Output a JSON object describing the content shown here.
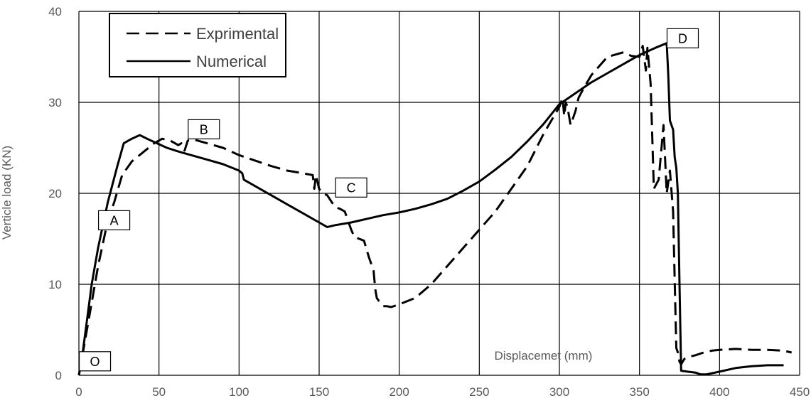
{
  "chart_data": {
    "type": "line",
    "title": "",
    "xlabel": "Displacemet (mm)",
    "ylabel": "Verticle load (KN)",
    "xlim": [
      0,
      450
    ],
    "ylim": [
      0,
      40
    ],
    "xticks": [
      0,
      50,
      100,
      150,
      200,
      250,
      300,
      350,
      400,
      450
    ],
    "yticks": [
      0,
      10,
      20,
      30,
      40
    ],
    "grid": true,
    "legend_position": "top-left",
    "series": [
      {
        "name": "Exprimental",
        "style": "dashed",
        "color": "#000000",
        "x": [
          0,
          3,
          7,
          12,
          18,
          22,
          27,
          33,
          40,
          47,
          52,
          57,
          60,
          62,
          64,
          66,
          68,
          72,
          80,
          90,
          100,
          110,
          120,
          130,
          140,
          146,
          147,
          148,
          150,
          152,
          155,
          158,
          160,
          163,
          166,
          168,
          170,
          172,
          175,
          178,
          181,
          184,
          185,
          186,
          188,
          190,
          192,
          195,
          200,
          210,
          220,
          230,
          240,
          250,
          260,
          270,
          280,
          290,
          300,
          302,
          303,
          304,
          305,
          307,
          308,
          310,
          312,
          315,
          320,
          330,
          340,
          345,
          350,
          352,
          354,
          355,
          357,
          359,
          362,
          365,
          367,
          369,
          371,
          372,
          373,
          374,
          375,
          376,
          377,
          378,
          380,
          385,
          390,
          395,
          400,
          410,
          420,
          430,
          440,
          445
        ],
        "y": [
          0,
          3,
          7,
          12,
          17,
          19,
          22,
          23.5,
          24.5,
          25.5,
          26,
          25.8,
          25.5,
          25.3,
          25.5,
          24.7,
          25.8,
          25.9,
          25.5,
          25,
          24.2,
          23.6,
          23,
          22.5,
          22.2,
          22,
          20.5,
          22,
          20.5,
          20,
          19.8,
          19,
          18.5,
          18.3,
          18,
          17,
          16,
          15.2,
          15,
          14.8,
          13,
          11.5,
          9.5,
          8.5,
          8,
          7.6,
          7.6,
          7.5,
          7.8,
          8.5,
          10,
          12,
          14,
          16,
          18,
          20.5,
          23,
          26.5,
          29.5,
          30.5,
          28.5,
          30,
          29.5,
          27.5,
          28,
          29,
          30.5,
          31.5,
          33,
          35,
          35.5,
          35.1,
          35,
          36.2,
          33.5,
          36,
          32,
          20.5,
          21.5,
          27.5,
          20,
          22.5,
          18,
          10.5,
          3,
          2.5,
          1.5,
          1.2,
          1.5,
          1.8,
          2,
          2.2,
          2.5,
          2.7,
          2.8,
          2.9,
          2.8,
          2.8,
          2.7,
          2.5
        ]
      },
      {
        "name": "Numerical",
        "style": "solid",
        "color": "#000000",
        "x": [
          0,
          2,
          5,
          8,
          12,
          18,
          24,
          28,
          33,
          38,
          45,
          55,
          62,
          70,
          80,
          90,
          100,
          102,
          103,
          110,
          120,
          130,
          140,
          150,
          155,
          160,
          170,
          180,
          190,
          200,
          210,
          220,
          230,
          240,
          250,
          260,
          270,
          280,
          290,
          300,
          310,
          320,
          330,
          340,
          350,
          360,
          367,
          368,
          369,
          370,
          371,
          372,
          373,
          374,
          375,
          376,
          380,
          385,
          388,
          392,
          400,
          410,
          420,
          430,
          440
        ],
        "y": [
          0,
          2,
          6,
          10,
          14,
          19,
          23,
          25.5,
          26,
          26.4,
          25.8,
          25,
          24.6,
          24.2,
          23.7,
          23.2,
          22.5,
          22.2,
          21.5,
          20.8,
          19.8,
          18.8,
          17.8,
          16.8,
          16.3,
          16.5,
          16.8,
          17.2,
          17.6,
          17.9,
          18.3,
          18.8,
          19.4,
          20.3,
          21.3,
          22.6,
          24,
          25.7,
          27.6,
          29.8,
          31,
          32.2,
          33.2,
          34.2,
          35.2,
          36,
          36.5,
          33,
          28,
          27.5,
          27,
          24,
          22.8,
          20,
          10,
          0.5,
          0.4,
          0.3,
          0.1,
          0.1,
          0.4,
          0.8,
          1,
          1.1,
          1.1
        ]
      }
    ],
    "annotations": [
      {
        "text": "O",
        "x": 10,
        "y": 1.5
      },
      {
        "text": "A",
        "x": 22,
        "y": 17
      },
      {
        "text": "B",
        "x": 78,
        "y": 27
      },
      {
        "text": "C",
        "x": 170,
        "y": 20.6
      },
      {
        "text": "D",
        "x": 377,
        "y": 37
      }
    ],
    "inline_label": {
      "text": "Displacemet (mm)",
      "x": 290,
      "y": 2.2
    }
  }
}
